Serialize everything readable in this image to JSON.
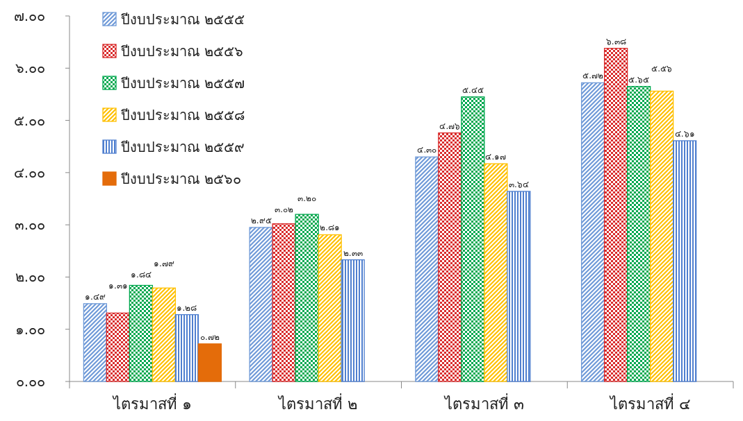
{
  "chart_data": {
    "type": "bar",
    "categories": [
      "ไตรมาสที่ ๑",
      "ไตรมาสที่ ๒",
      "ไตรมาสที่ ๓",
      "ไตรมาสที่ ๔"
    ],
    "ylim": [
      0,
      7
    ],
    "yticks": [
      {
        "value": 0,
        "label": "๐.๐๐"
      },
      {
        "value": 1,
        "label": "๑.๐๐"
      },
      {
        "value": 2,
        "label": "๒.๐๐"
      },
      {
        "value": 3,
        "label": "๓.๐๐"
      },
      {
        "value": 4,
        "label": "๔.๐๐"
      },
      {
        "value": 5,
        "label": "๕.๐๐"
      },
      {
        "value": 6,
        "label": "๖.๐๐"
      },
      {
        "value": 7,
        "label": "๗.๐๐"
      }
    ],
    "legend": "top left",
    "series": [
      {
        "name": "ปีงบประมาณ ๒๕๕๕",
        "color": "#6f9ad8",
        "values": [
          1.49,
          2.95,
          4.3,
          5.72
        ],
        "value_labels": [
          "๑.๔๙",
          "๒.๙๕",
          "๔.๓๐",
          "๕.๗๒"
        ]
      },
      {
        "name": "ปีงบประมาณ ๒๕๕๖",
        "color": "#d92b2b",
        "values": [
          1.31,
          3.02,
          4.76,
          6.38
        ],
        "value_labels": [
          "๑.๓๑",
          "๓.๐๒",
          "๔.๗๖",
          "๖.๓๘"
        ]
      },
      {
        "name": "ปีงบประมาณ ๒๕๕๗",
        "color": "#00a84f",
        "values": [
          1.84,
          3.2,
          5.45,
          5.65
        ],
        "value_labels": [
          "๑.๘๔",
          "๓.๒๐",
          "๕.๔๕",
          "๕.๖๕"
        ]
      },
      {
        "name": "ปีงบประมาณ ๒๕๕๘",
        "color": "#ffc000",
        "values": [
          1.79,
          2.81,
          4.17,
          5.56
        ],
        "value_labels": [
          "๑.๗๙",
          "๒.๘๑",
          "๔.๑๗",
          "๕.๕๖"
        ]
      },
      {
        "name": "ปีงบประมาณ ๒๕๕๙",
        "color": "#4f7fcf",
        "values": [
          1.28,
          2.33,
          3.64,
          4.61
        ],
        "value_labels": [
          "๑.๒๘",
          "๒.๓๓",
          "๓.๖๔",
          "๔.๖๑"
        ]
      },
      {
        "name": "ปีงบประมาณ ๒๕๖๐",
        "color": "#e46c0a",
        "values": [
          0.72,
          null,
          null,
          null
        ],
        "value_labels": [
          "๐.๗๒",
          null,
          null,
          null
        ]
      }
    ]
  }
}
